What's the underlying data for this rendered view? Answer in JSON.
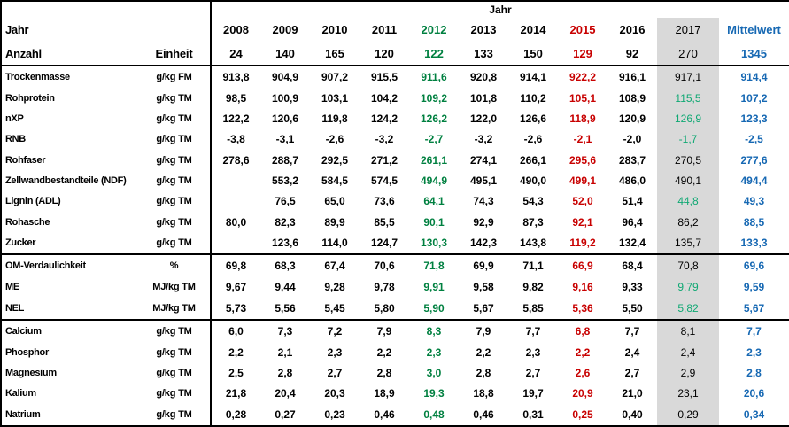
{
  "chart_data": {
    "type": "table",
    "header": {
      "group_label": "Jahr",
      "row1_label": "Jahr",
      "row2_label": "Anzahl",
      "unit_column_label": "Einheit",
      "mean_column_label": "Mittelwert",
      "years": [
        "2008",
        "2009",
        "2010",
        "2011",
        "2012",
        "2013",
        "2014",
        "2015",
        "2016",
        "2017"
      ],
      "counts": [
        "24",
        "140",
        "165",
        "120",
        "122",
        "133",
        "150",
        "129",
        "92",
        "270"
      ],
      "mean_count": "1345"
    },
    "colors": {
      "year_2012_text": "#008040",
      "year_2015_text": "#C80000",
      "year_2017_highlight_bg": "#D9D9D9",
      "year_2017_green_value_text": "#0FA873",
      "mean_column_text": "#1668B3",
      "default_text": "#000000",
      "border": "#000000"
    },
    "sections": [
      {
        "rows": [
          {
            "label": "Trockenmasse",
            "unit": "g/kg FM",
            "values": [
              "913,8",
              "904,9",
              "907,2",
              "915,5",
              "911,6",
              "920,8",
              "914,1",
              "922,2",
              "916,1",
              "917,1"
            ],
            "mean": "914,4",
            "green_2017": false
          },
          {
            "label": "Rohprotein",
            "unit": "g/kg TM",
            "values": [
              "98,5",
              "100,9",
              "103,1",
              "104,2",
              "109,2",
              "101,8",
              "110,2",
              "105,1",
              "108,9",
              "115,5"
            ],
            "mean": "107,2",
            "green_2017": true
          },
          {
            "label": "nXP",
            "unit": "g/kg TM",
            "values": [
              "122,2",
              "120,6",
              "119,8",
              "124,2",
              "126,2",
              "122,0",
              "126,6",
              "118,9",
              "120,9",
              "126,9"
            ],
            "mean": "123,3",
            "green_2017": true
          },
          {
            "label": "RNB",
            "unit": "g/kg TM",
            "values": [
              "-3,8",
              "-3,1",
              "-2,6",
              "-3,2",
              "-2,7",
              "-3,2",
              "-2,6",
              "-2,1",
              "-2,0",
              "-1,7"
            ],
            "mean": "-2,5",
            "green_2017": true
          },
          {
            "label": "Rohfaser",
            "unit": "g/kg TM",
            "values": [
              "278,6",
              "288,7",
              "292,5",
              "271,2",
              "261,1",
              "274,1",
              "266,1",
              "295,6",
              "283,7",
              "270,5"
            ],
            "mean": "277,6",
            "green_2017": false
          },
          {
            "label": "Zellwandbestandteile (NDF)",
            "unit": "g/kg TM",
            "values": [
              "",
              "553,2",
              "584,5",
              "574,5",
              "494,9",
              "495,1",
              "490,0",
              "499,1",
              "486,0",
              "490,1"
            ],
            "mean": "494,4",
            "green_2017": false
          },
          {
            "label": "Lignin (ADL)",
            "unit": "g/kg TM",
            "values": [
              "",
              "76,5",
              "65,0",
              "73,6",
              "64,1",
              "74,3",
              "54,3",
              "52,0",
              "51,4",
              "44,8"
            ],
            "mean": "49,3",
            "green_2017": true
          },
          {
            "label": "Rohasche",
            "unit": "g/kg TM",
            "values": [
              "80,0",
              "82,3",
              "89,9",
              "85,5",
              "90,1",
              "92,9",
              "87,3",
              "92,1",
              "96,4",
              "86,2"
            ],
            "mean": "88,5",
            "green_2017": false
          },
          {
            "label": "Zucker",
            "unit": "g/kg TM",
            "values": [
              "",
              "123,6",
              "114,0",
              "124,7",
              "130,3",
              "142,3",
              "143,8",
              "119,2",
              "132,4",
              "135,7"
            ],
            "mean": "133,3",
            "green_2017": false
          }
        ]
      },
      {
        "rows": [
          {
            "label": "OM-Verdaulichkeit",
            "unit": "%",
            "values": [
              "69,8",
              "68,3",
              "67,4",
              "70,6",
              "71,8",
              "69,9",
              "71,1",
              "66,9",
              "68,4",
              "70,8"
            ],
            "mean": "69,6",
            "green_2017": false
          },
          {
            "label": "ME",
            "unit": "MJ/kg TM",
            "values": [
              "9,67",
              "9,44",
              "9,28",
              "9,78",
              "9,91",
              "9,58",
              "9,82",
              "9,16",
              "9,33",
              "9,79"
            ],
            "mean": "9,59",
            "green_2017": true
          },
          {
            "label": "NEL",
            "unit": "MJ/kg TM",
            "values": [
              "5,73",
              "5,56",
              "5,45",
              "5,80",
              "5,90",
              "5,67",
              "5,85",
              "5,36",
              "5,50",
              "5,82"
            ],
            "mean": "5,67",
            "green_2017": true
          }
        ]
      },
      {
        "rows": [
          {
            "label": "Calcium",
            "unit": "g/kg TM",
            "values": [
              "6,0",
              "7,3",
              "7,2",
              "7,9",
              "8,3",
              "7,9",
              "7,7",
              "6,8",
              "7,7",
              "8,1"
            ],
            "mean": "7,7",
            "green_2017": false
          },
          {
            "label": "Phosphor",
            "unit": "g/kg TM",
            "values": [
              "2,2",
              "2,1",
              "2,3",
              "2,2",
              "2,3",
              "2,2",
              "2,3",
              "2,2",
              "2,4",
              "2,4"
            ],
            "mean": "2,3",
            "green_2017": false
          },
          {
            "label": "Magnesium",
            "unit": "g/kg TM",
            "values": [
              "2,5",
              "2,8",
              "2,7",
              "2,8",
              "3,0",
              "2,8",
              "2,7",
              "2,6",
              "2,7",
              "2,9"
            ],
            "mean": "2,8",
            "green_2017": false
          },
          {
            "label": "Kalium",
            "unit": "g/kg TM",
            "values": [
              "21,8",
              "20,4",
              "20,3",
              "18,9",
              "19,3",
              "18,8",
              "19,7",
              "20,9",
              "21,0",
              "23,1"
            ],
            "mean": "20,6",
            "green_2017": false
          },
          {
            "label": "Natrium",
            "unit": "g/kg TM",
            "values": [
              "0,28",
              "0,27",
              "0,23",
              "0,46",
              "0,48",
              "0,46",
              "0,31",
              "0,25",
              "0,40",
              "0,29"
            ],
            "mean": "0,34",
            "green_2017": false
          }
        ]
      }
    ]
  }
}
